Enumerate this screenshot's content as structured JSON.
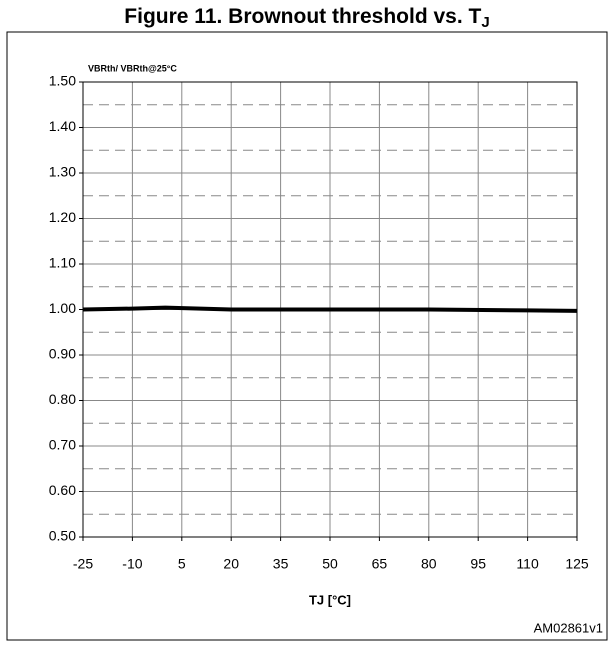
{
  "chart_data": {
    "type": "line",
    "title": "Figure 11. Brownout threshold vs. T",
    "title_subscript": "J",
    "y_label": "VBRth/ VBRth@25°C",
    "x_label": "TJ [°C]",
    "footnote": "AM02861v1",
    "x": [
      -25,
      -10,
      0,
      20,
      50,
      80,
      110,
      125
    ],
    "series": [
      {
        "name": "VBRth/ VBRth@25°C",
        "color": "#000000",
        "values": [
          1.0,
          1.002,
          1.004,
          1.0,
          1.0,
          1.0,
          0.998,
          0.997
        ]
      }
    ],
    "xlim": [
      -25,
      125
    ],
    "xticks": [
      -25,
      -10,
      5,
      20,
      35,
      50,
      65,
      80,
      95,
      110,
      125
    ],
    "ylim": [
      0.5,
      1.5
    ],
    "yticks": [
      {
        "value": 0.5,
        "label": "0.50"
      },
      {
        "value": 0.6,
        "label": "0.60"
      },
      {
        "value": 0.7,
        "label": "0.70"
      },
      {
        "value": 0.8,
        "label": "0.80"
      },
      {
        "value": 0.9,
        "label": "0.90"
      },
      {
        "value": 1.0,
        "label": "1.00"
      },
      {
        "value": 1.1,
        "label": "1.10"
      },
      {
        "value": 1.2,
        "label": "1.20"
      },
      {
        "value": 1.3,
        "label": "1.30"
      },
      {
        "value": 1.4,
        "label": "1.40"
      },
      {
        "value": 1.5,
        "label": "1.50"
      }
    ],
    "yminorticks": [
      0.55,
      0.65,
      0.75,
      0.85,
      0.95,
      1.05,
      1.15,
      1.25,
      1.35,
      1.45
    ],
    "grid": true
  }
}
